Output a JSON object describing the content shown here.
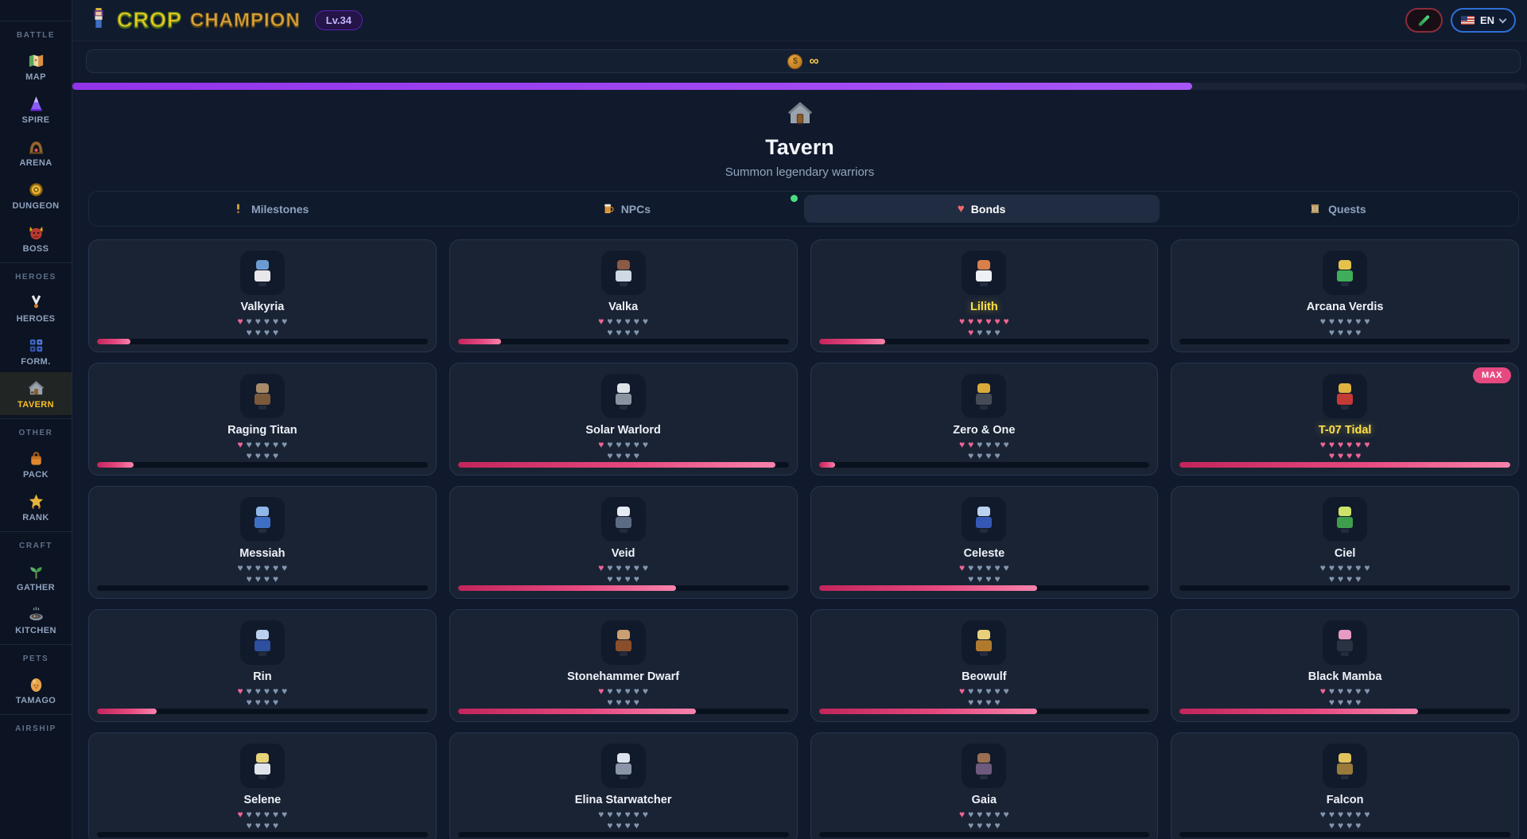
{
  "app": {
    "logo_crop": "CROP",
    "logo_champion": "CHAMPION",
    "level_badge": "Lv.34",
    "language": "EN",
    "coin_value": "∞",
    "top_progress_percent": 77
  },
  "labels": {
    "max_badge": "MAX"
  },
  "icons": {
    "heart": "♥",
    "infinity": "∞",
    "rank_star": "★"
  },
  "colors": {
    "accent_pink": "#f06595",
    "accent_purple": "#a855f7",
    "gold_name": "#fde047",
    "heart_empty": "#8296b0",
    "progress_fill": "#e64980",
    "notification_green": "#4ade80",
    "active_sidebar_label": "#fbbf24"
  },
  "sidebar": {
    "sections": [
      {
        "header": "BATTLE",
        "items": [
          {
            "label": "MAP",
            "icon": "map"
          },
          {
            "label": "SPIRE",
            "icon": "spire"
          },
          {
            "label": "ARENA",
            "icon": "arena"
          },
          {
            "label": "DUNGEON",
            "icon": "dungeon"
          },
          {
            "label": "BOSS",
            "icon": "boss"
          }
        ]
      },
      {
        "header": "HEROES",
        "items": [
          {
            "label": "HEROES",
            "icon": "medal"
          },
          {
            "label": "FORM.",
            "icon": "formation"
          },
          {
            "label": "TAVERN",
            "icon": "tavern",
            "active": true
          }
        ]
      },
      {
        "header": "OTHER",
        "items": [
          {
            "label": "PACK",
            "icon": "pack"
          },
          {
            "label": "RANK",
            "icon": "rank"
          }
        ]
      },
      {
        "header": "CRAFT",
        "items": [
          {
            "label": "GATHER",
            "icon": "gather"
          },
          {
            "label": "KITCHEN",
            "icon": "kitchen"
          }
        ]
      },
      {
        "header": "PETS",
        "items": [
          {
            "label": "TAMAGO",
            "icon": "tamago"
          }
        ]
      },
      {
        "header": "AIRSHIP",
        "items": []
      }
    ]
  },
  "page": {
    "title": "Tavern",
    "subtitle": "Summon legendary warriors"
  },
  "tabs": [
    {
      "label": "Milestones",
      "icon": "milestone",
      "active": false
    },
    {
      "label": "NPCs",
      "icon": "mug",
      "active": false
    },
    {
      "label": "Bonds",
      "icon": "heart",
      "active": true,
      "notification": true
    },
    {
      "label": "Quests",
      "icon": "scroll",
      "active": false
    }
  ],
  "characters": [
    {
      "name": "Valkyria",
      "hearts_filled": 1,
      "hearts_total": 10,
      "progress_percent": 10,
      "name_style": "normal",
      "max": false,
      "avatar_colors": [
        "#6b9bd2",
        "#e8e8ea"
      ]
    },
    {
      "name": "Valka",
      "hearts_filled": 1,
      "hearts_total": 10,
      "progress_percent": 13,
      "name_style": "normal",
      "max": false,
      "avatar_colors": [
        "#8a5a44",
        "#cfd8e3"
      ]
    },
    {
      "name": "Lilith",
      "hearts_filled": 7,
      "hearts_total": 10,
      "progress_percent": 20,
      "name_style": "gold",
      "max": false,
      "avatar_colors": [
        "#d97f4a",
        "#eef2f7"
      ]
    },
    {
      "name": "Arcana Verdis",
      "hearts_filled": 0,
      "hearts_total": 10,
      "progress_percent": 0,
      "name_style": "normal",
      "max": false,
      "avatar_colors": [
        "#e3c34b",
        "#3fae5a"
      ]
    },
    {
      "name": "Raging Titan",
      "hearts_filled": 1,
      "hearts_total": 10,
      "progress_percent": 11,
      "name_style": "normal",
      "max": false,
      "avatar_colors": [
        "#a98a6a",
        "#7a5a3a"
      ]
    },
    {
      "name": "Solar Warlord",
      "hearts_filled": 1,
      "hearts_total": 10,
      "progress_percent": 96,
      "name_style": "normal",
      "max": false,
      "avatar_colors": [
        "#dfe3e8",
        "#8a93a0"
      ]
    },
    {
      "name": "Zero & One",
      "hearts_filled": 2,
      "hearts_total": 10,
      "progress_percent": 5,
      "name_style": "normal",
      "max": false,
      "avatar_colors": [
        "#d9a93b",
        "#454c58"
      ]
    },
    {
      "name": "T-07 Tidal",
      "hearts_filled": 10,
      "hearts_total": 10,
      "progress_percent": 100,
      "name_style": "gold",
      "max": true,
      "avatar_colors": [
        "#e0b23f",
        "#c43a35"
      ]
    },
    {
      "name": "Messiah",
      "hearts_filled": 0,
      "hearts_total": 10,
      "progress_percent": 0,
      "name_style": "normal",
      "max": false,
      "avatar_colors": [
        "#8fb7e8",
        "#3f6fc4"
      ]
    },
    {
      "name": "Veid",
      "hearts_filled": 1,
      "hearts_total": 10,
      "progress_percent": 66,
      "name_style": "normal",
      "max": false,
      "avatar_colors": [
        "#e6ebf2",
        "#5b6b82"
      ]
    },
    {
      "name": "Celeste",
      "hearts_filled": 1,
      "hearts_total": 10,
      "progress_percent": 66,
      "name_style": "normal",
      "max": false,
      "avatar_colors": [
        "#bcd3f0",
        "#3558b5"
      ]
    },
    {
      "name": "Ciel",
      "hearts_filled": 0,
      "hearts_total": 10,
      "progress_percent": 0,
      "name_style": "normal",
      "max": false,
      "avatar_colors": [
        "#cde468",
        "#3f9e4e"
      ]
    },
    {
      "name": "Rin",
      "hearts_filled": 1,
      "hearts_total": 10,
      "progress_percent": 18,
      "name_style": "normal",
      "max": false,
      "avatar_colors": [
        "#b9d0ee",
        "#2d4f9e"
      ]
    },
    {
      "name": "Stonehammer Dwarf",
      "hearts_filled": 1,
      "hearts_total": 10,
      "progress_percent": 72,
      "name_style": "normal",
      "max": false,
      "avatar_colors": [
        "#caa071",
        "#8a4f2a"
      ]
    },
    {
      "name": "Beowulf",
      "hearts_filled": 1,
      "hearts_total": 10,
      "progress_percent": 66,
      "name_style": "normal",
      "max": false,
      "avatar_colors": [
        "#e8cf7a",
        "#b07a2e"
      ]
    },
    {
      "name": "Black Mamba",
      "hearts_filled": 1,
      "hearts_total": 10,
      "progress_percent": 72,
      "name_style": "normal",
      "max": false,
      "avatar_colors": [
        "#e79ac2",
        "#2a3140"
      ]
    },
    {
      "name": "Selene",
      "hearts_filled": 1,
      "hearts_total": 10,
      "progress_percent": 0,
      "name_style": "normal",
      "max": false,
      "avatar_colors": [
        "#e8d27a",
        "#dfe3ea"
      ]
    },
    {
      "name": "Elina Starwatcher",
      "hearts_filled": 0,
      "hearts_total": 10,
      "progress_percent": 0,
      "name_style": "normal",
      "max": false,
      "avatar_colors": [
        "#dde4ee",
        "#8a96a8"
      ]
    },
    {
      "name": "Gaia",
      "hearts_filled": 1,
      "hearts_total": 10,
      "progress_percent": 0,
      "name_style": "normal",
      "max": false,
      "avatar_colors": [
        "#9a6f52",
        "#6d5a7e"
      ]
    },
    {
      "name": "Falcon",
      "hearts_filled": 0,
      "hearts_total": 10,
      "progress_percent": 0,
      "name_style": "normal",
      "max": false,
      "avatar_colors": [
        "#e3c35e",
        "#9a7a3a"
      ]
    }
  ]
}
